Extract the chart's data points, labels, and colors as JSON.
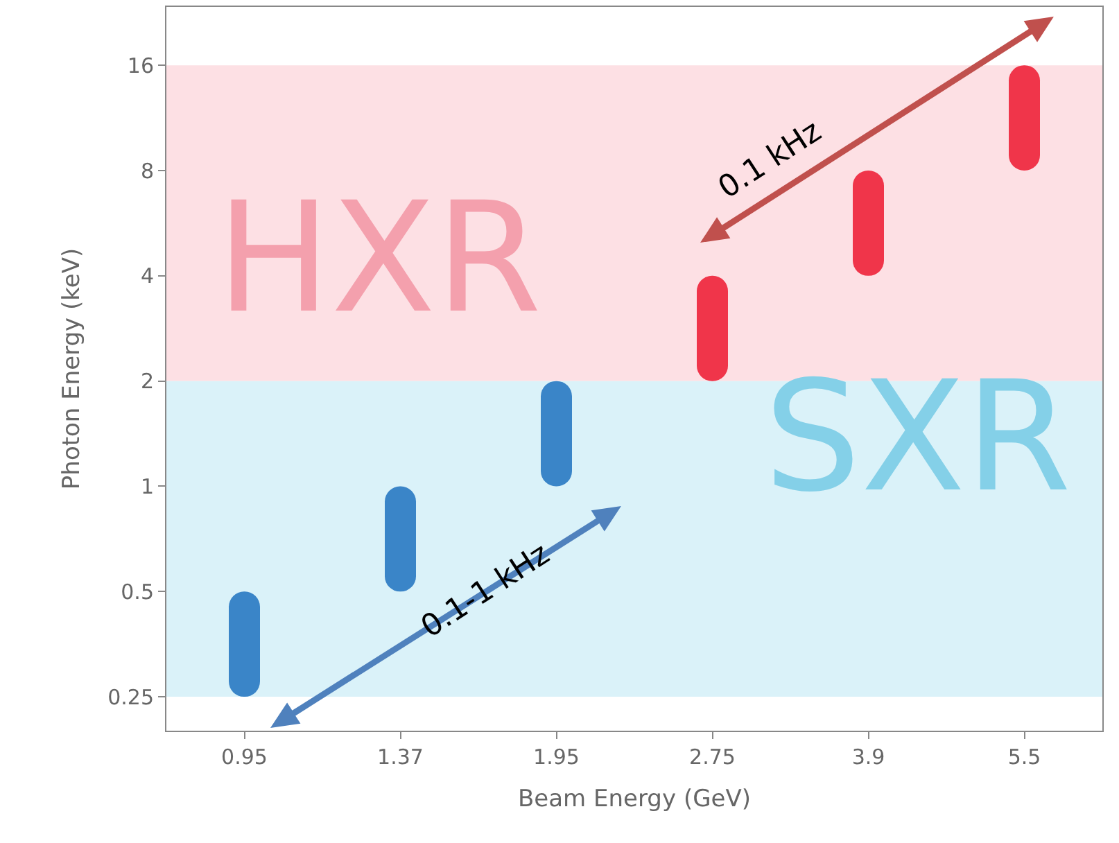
{
  "chart_data": {
    "type": "bar",
    "xlabel": "Beam Energy (GeV)",
    "ylabel": "Photon Energy (keV)",
    "categories": [
      "0.95",
      "1.37",
      "1.95",
      "2.75",
      "3.9",
      "5.5"
    ],
    "base": [
      0.25,
      0.5,
      1,
      2,
      4,
      8
    ],
    "values": [
      0.25,
      0.5,
      1,
      2,
      4,
      8
    ],
    "colors": [
      "#3a85c8",
      "#3a85c8",
      "#3a85c8",
      "#f0354a",
      "#f0354a",
      "#f0354a"
    ],
    "log": true,
    "ylim": [
      0.2,
      23.5
    ],
    "yticks": [
      0.25,
      0.5,
      1,
      2,
      4,
      8,
      16
    ],
    "bands": [
      {
        "axis": "y",
        "from": 2,
        "to": 16,
        "label": "HXR",
        "color": "#fde0e4"
      },
      {
        "axis": "y",
        "from": 0.25,
        "to": 2,
        "label": "SXR",
        "color": "#daf2f9"
      }
    ],
    "annotations": [
      "0.1 kHz",
      "0.1-1 kHz"
    ],
    "grid": false
  }
}
